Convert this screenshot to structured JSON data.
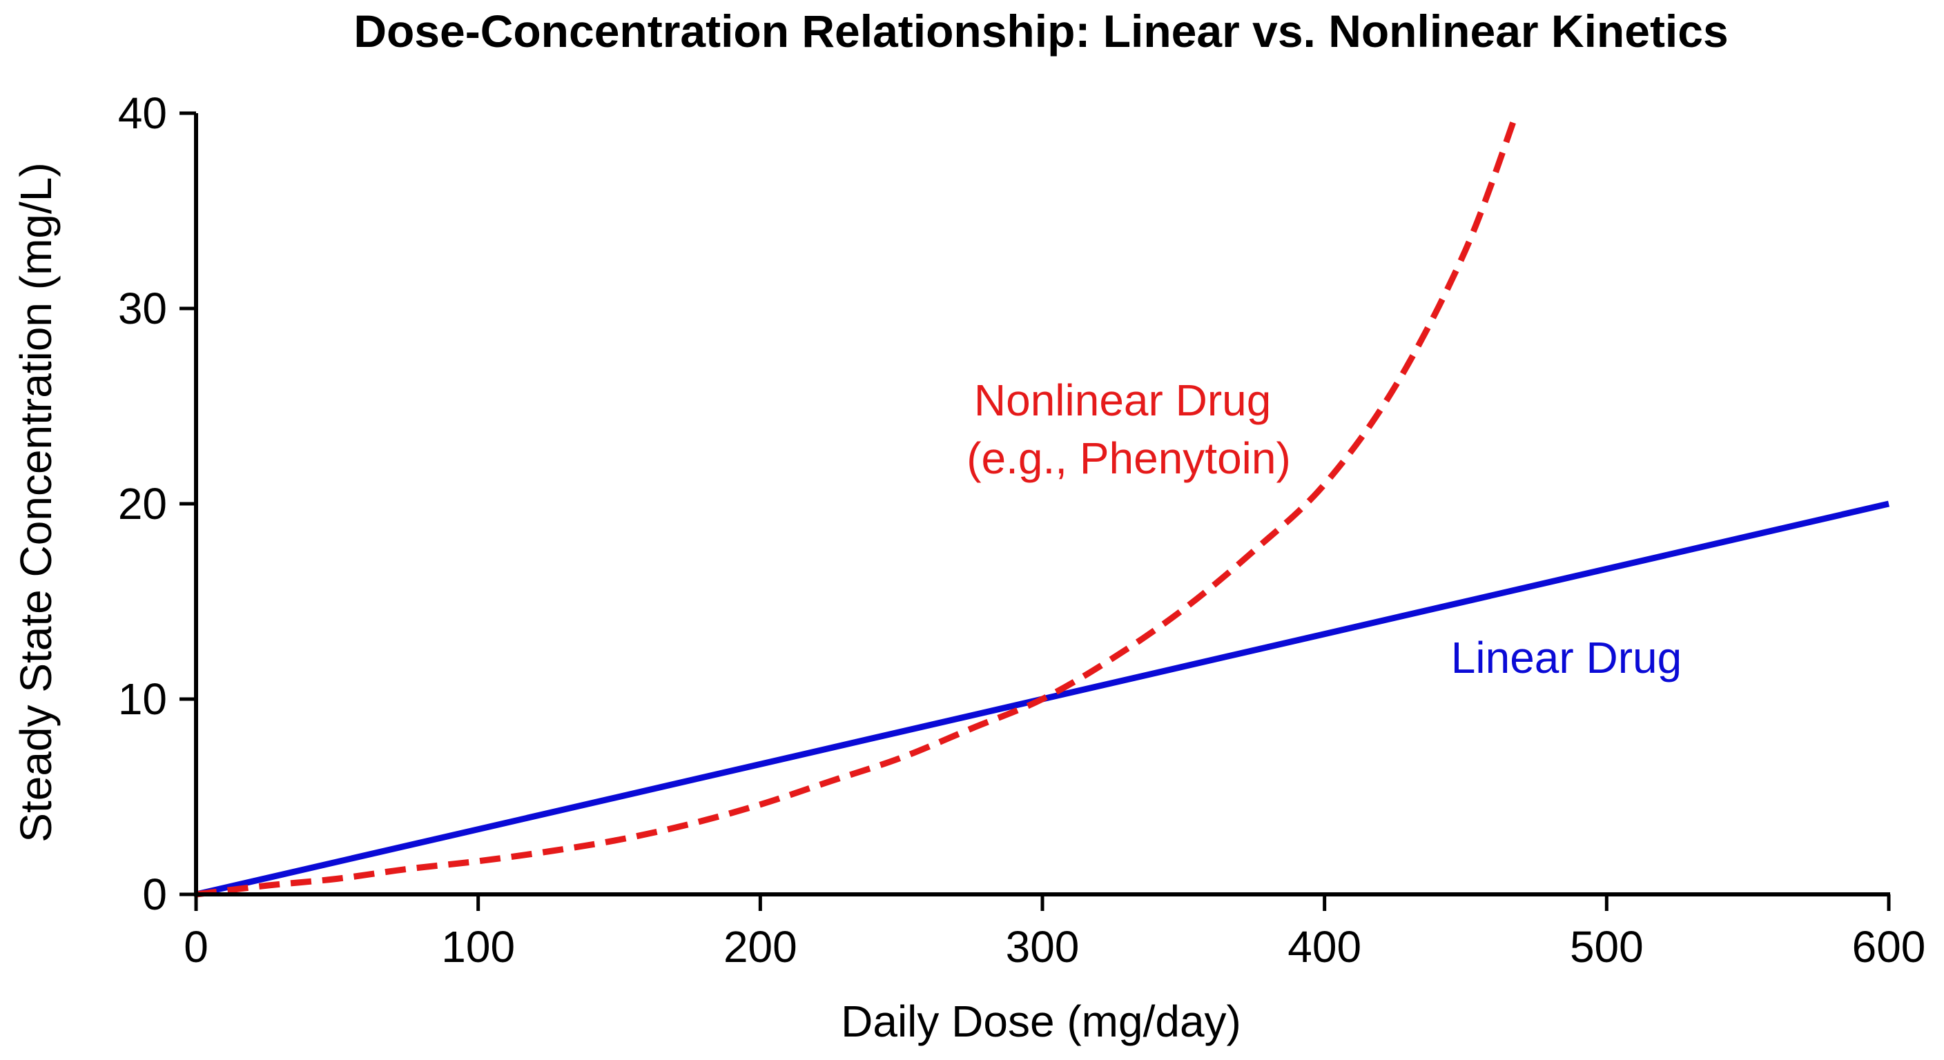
{
  "chart_data": {
    "type": "line",
    "title": "Dose-Concentration Relationship: Linear vs. Nonlinear Kinetics",
    "xlabel": "Daily Dose (mg/day)",
    "ylabel": "Steady State Concentration (mg/L)",
    "xlim": [
      0,
      600
    ],
    "ylim": [
      0,
      40
    ],
    "xticks": [
      0,
      100,
      200,
      300,
      400,
      500,
      600
    ],
    "yticks": [
      0,
      10,
      20,
      30,
      40
    ],
    "grid": false,
    "legend": "none",
    "series": [
      {
        "name": "Linear Drug",
        "style": "solid",
        "color": "#0a0ad6",
        "x": [
          0,
          600
        ],
        "y": [
          0,
          20
        ]
      },
      {
        "name": "Nonlinear Drug",
        "style": "dashed",
        "color": "#e51a1a",
        "x": [
          0,
          25,
          50,
          75,
          100,
          125,
          150,
          175,
          200,
          225,
          250,
          275,
          300,
          325,
          350,
          375,
          400,
          425,
          450,
          468
        ],
        "y": [
          0,
          0.45,
          0.8,
          1.3,
          1.7,
          2.2,
          2.8,
          3.6,
          4.6,
          5.8,
          7.0,
          8.5,
          10.0,
          12.1,
          14.6,
          17.6,
          21.0,
          26.0,
          33.0,
          40.0
        ]
      }
    ],
    "annotations": [
      {
        "series": "Nonlinear Drug",
        "lines": [
          "Nonlinear Drug",
          "(e.g., Phenytoin)"
        ],
        "color": "#e51a1a"
      },
      {
        "series": "Linear Drug",
        "lines": [
          "Linear Drug"
        ],
        "color": "#0a0ad6"
      }
    ]
  }
}
